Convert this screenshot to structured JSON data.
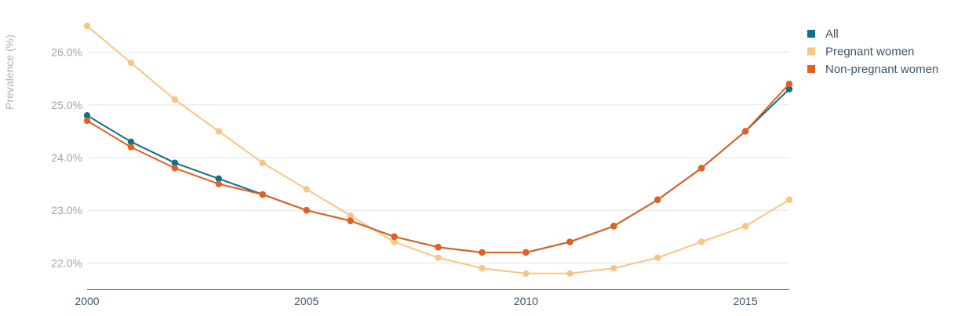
{
  "chart_data": {
    "type": "line",
    "ylabel": "Prevalence (%)",
    "xlabel": "",
    "title": "",
    "x": [
      2000,
      2001,
      2002,
      2003,
      2004,
      2005,
      2006,
      2007,
      2008,
      2009,
      2010,
      2011,
      2012,
      2013,
      2014,
      2015,
      2016
    ],
    "xlim": [
      2000,
      2016
    ],
    "ylim": [
      21.5,
      26.5
    ],
    "x_ticks": [
      2000,
      2005,
      2010,
      2015
    ],
    "x_tick_labels": [
      "2000",
      "2005",
      "2010",
      "2015"
    ],
    "y_ticks": [
      22,
      23,
      24,
      25,
      26
    ],
    "y_tick_labels": [
      "22.0%",
      "23.0%",
      "24.0%",
      "25.0%",
      "26.0%"
    ],
    "grid": true,
    "legend_position": "top-right",
    "series": [
      {
        "name": "All",
        "color": "#0f6f8c",
        "values": [
          24.8,
          24.3,
          23.9,
          23.6,
          23.3,
          23.0,
          22.8,
          22.5,
          22.3,
          22.2,
          22.2,
          22.4,
          22.7,
          23.2,
          23.8,
          24.5,
          25.3
        ]
      },
      {
        "name": "Pregnant women",
        "color": "#f9c583",
        "values": [
          26.5,
          25.8,
          25.1,
          24.5,
          23.9,
          23.4,
          22.9,
          22.4,
          22.1,
          21.9,
          21.8,
          21.8,
          21.9,
          22.1,
          22.4,
          22.7,
          23.2
        ]
      },
      {
        "name": "Non-pregnant women",
        "color": "#e0601f",
        "values": [
          24.7,
          24.2,
          23.8,
          23.5,
          23.3,
          23.0,
          22.8,
          22.5,
          22.3,
          22.2,
          22.2,
          22.4,
          22.7,
          23.2,
          23.8,
          24.5,
          25.4
        ]
      }
    ]
  }
}
